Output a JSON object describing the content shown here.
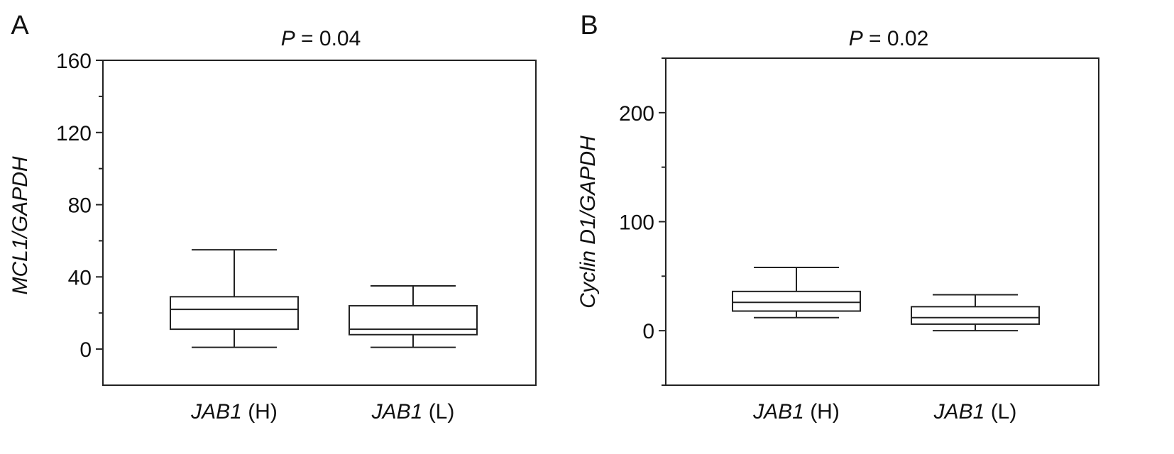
{
  "chart_data": [
    {
      "type": "box",
      "panel_label": "A",
      "title_prefix": "P",
      "title_value": "= 0.04",
      "ylabel": "MCL1/GAPDH",
      "ylim": [
        -20,
        160
      ],
      "yticks": [
        0,
        40,
        80,
        120,
        160
      ],
      "ytick_labels": [
        "0",
        "40",
        "80",
        "120",
        "160"
      ],
      "yminor": [
        20,
        60,
        100,
        140
      ],
      "categories": [
        {
          "gene": "JAB1",
          "group": "(H)"
        },
        {
          "gene": "JAB1",
          "group": "(L)"
        }
      ],
      "boxes": [
        {
          "min": 1,
          "q1": 11,
          "median": 22,
          "q3": 29,
          "max": 55
        },
        {
          "min": 1,
          "q1": 8,
          "median": 11,
          "q3": 24,
          "max": 35
        }
      ]
    },
    {
      "type": "box",
      "panel_label": "B",
      "title_prefix": "P",
      "title_value": "= 0.02",
      "ylabel": "Cyclin D1/GAPDH",
      "ylim": [
        -50,
        250
      ],
      "yticks": [
        0,
        100,
        200
      ],
      "ytick_labels": [
        "0",
        "100",
        "200"
      ],
      "yminor": [
        -50,
        50,
        150,
        250
      ],
      "categories": [
        {
          "gene": "JAB1",
          "group": "(H)"
        },
        {
          "gene": "JAB1",
          "group": "(L)"
        }
      ],
      "boxes": [
        {
          "min": 12,
          "q1": 18,
          "median": 26,
          "q3": 36,
          "max": 58
        },
        {
          "min": 0,
          "q1": 6,
          "median": 12,
          "q3": 22,
          "max": 33
        }
      ]
    }
  ]
}
